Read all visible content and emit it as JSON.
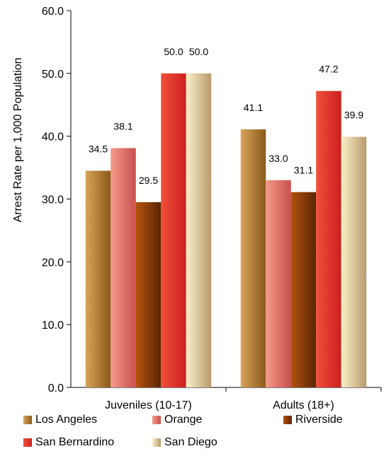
{
  "chart_data": {
    "type": "bar",
    "categories": [
      "Juveniles (10-17)",
      "Adults (18+)"
    ],
    "series": [
      {
        "name": "Los Angeles",
        "values": [
          34.5,
          41.1
        ],
        "color_dark": "#8a5a1a",
        "color_light": "#d9a45a"
      },
      {
        "name": "Orange",
        "values": [
          38.1,
          33.0
        ],
        "color_dark": "#c9504e",
        "color_light": "#f49a88"
      },
      {
        "name": "Riverside",
        "values": [
          29.5,
          31.1
        ],
        "color_dark": "#5a2504",
        "color_light": "#b4530e"
      },
      {
        "name": "San Bernardino",
        "values": [
          50.0,
          47.2
        ],
        "color_dark": "#cc1f1f",
        "color_light": "#f0503a"
      },
      {
        "name": "San Diego",
        "values": [
          50.0,
          39.9
        ],
        "color_dark": "#b89a6c",
        "color_light": "#fbefc8"
      }
    ],
    "data_labels": [
      [
        "34.5",
        "41.1"
      ],
      [
        "38.1",
        "33.0"
      ],
      [
        "29.5",
        "31.1"
      ],
      [
        "50.0",
        "47.2"
      ],
      [
        "50.0",
        "39.9"
      ]
    ],
    "ylabel": "Arrest Rate per 1,000 Population",
    "ylim": [
      0,
      60
    ],
    "yticks": [
      "0.0",
      "10.0",
      "20.0",
      "30.0",
      "40.0",
      "50.0",
      "60.0"
    ],
    "grid": false,
    "legend_position": "bottom"
  }
}
